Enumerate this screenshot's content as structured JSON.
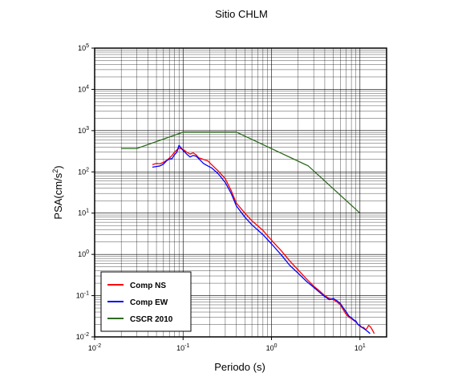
{
  "chart_data": {
    "type": "line",
    "title": "Sitio CHLM",
    "xlabel": "Periodo (s)",
    "ylabel_main": "PSA(cm/s",
    "ylabel_sup": "2",
    "ylabel_close": ")",
    "x_scale": "log",
    "y_scale": "log",
    "xlim": [
      0.01,
      20
    ],
    "ylim": [
      0.01,
      100000
    ],
    "grid": true,
    "legend_position": "bottom-left",
    "x_tick_labels": [
      {
        "base": "10",
        "exp": "-2"
      },
      {
        "base": "10",
        "exp": "-1"
      },
      {
        "base": "10",
        "exp": "0"
      },
      {
        "base": "10",
        "exp": "1"
      }
    ],
    "y_tick_labels": [
      {
        "base": "10",
        "exp": "-2"
      },
      {
        "base": "10",
        "exp": "-1"
      },
      {
        "base": "10",
        "exp": "0"
      },
      {
        "base": "10",
        "exp": "1"
      },
      {
        "base": "10",
        "exp": "2"
      },
      {
        "base": "10",
        "exp": "3"
      },
      {
        "base": "10",
        "exp": "4"
      },
      {
        "base": "10",
        "exp": "5"
      }
    ],
    "series": [
      {
        "name": "Comp NS",
        "color": "#ff0000",
        "points": [
          [
            0.045,
            150
          ],
          [
            0.05,
            160
          ],
          [
            0.055,
            158
          ],
          [
            0.06,
            170
          ],
          [
            0.065,
            190
          ],
          [
            0.07,
            215
          ],
          [
            0.075,
            250
          ],
          [
            0.08,
            300
          ],
          [
            0.085,
            340
          ],
          [
            0.09,
            380
          ],
          [
            0.1,
            350
          ],
          [
            0.11,
            300
          ],
          [
            0.12,
            270
          ],
          [
            0.13,
            290
          ],
          [
            0.14,
            260
          ],
          [
            0.15,
            220
          ],
          [
            0.17,
            200
          ],
          [
            0.19,
            185
          ],
          [
            0.21,
            150
          ],
          [
            0.25,
            105
          ],
          [
            0.3,
            68
          ],
          [
            0.35,
            35
          ],
          [
            0.4,
            17.5
          ],
          [
            0.5,
            10
          ],
          [
            0.6,
            6.5
          ],
          [
            0.8,
            3.8
          ],
          [
            1.0,
            2.2
          ],
          [
            1.3,
            1.2
          ],
          [
            1.6,
            0.7
          ],
          [
            2.0,
            0.42
          ],
          [
            2.5,
            0.25
          ],
          [
            3.0,
            0.17
          ],
          [
            3.5,
            0.13
          ],
          [
            4.0,
            0.1
          ],
          [
            4.5,
            0.085
          ],
          [
            5.0,
            0.08
          ],
          [
            5.5,
            0.07
          ],
          [
            6.0,
            0.06
          ],
          [
            6.5,
            0.045
          ],
          [
            7.0,
            0.035
          ],
          [
            7.5,
            0.03
          ],
          [
            8.0,
            0.028
          ],
          [
            8.5,
            0.025
          ],
          [
            9.0,
            0.023
          ],
          [
            9.5,
            0.02
          ],
          [
            10.0,
            0.018
          ],
          [
            10.5,
            0.017
          ],
          [
            11.0,
            0.017
          ],
          [
            11.5,
            0.015
          ],
          [
            12.0,
            0.016
          ],
          [
            12.5,
            0.019
          ],
          [
            13.0,
            0.018
          ],
          [
            13.5,
            0.016
          ],
          [
            14.0,
            0.014
          ],
          [
            14.5,
            0.012
          ]
        ]
      },
      {
        "name": "Comp EW",
        "color": "#0000ff",
        "points": [
          [
            0.045,
            130
          ],
          [
            0.05,
            135
          ],
          [
            0.055,
            140
          ],
          [
            0.06,
            155
          ],
          [
            0.065,
            185
          ],
          [
            0.07,
            205
          ],
          [
            0.075,
            210
          ],
          [
            0.08,
            260
          ],
          [
            0.085,
            300
          ],
          [
            0.09,
            440
          ],
          [
            0.095,
            380
          ],
          [
            0.1,
            330
          ],
          [
            0.11,
            270
          ],
          [
            0.12,
            230
          ],
          [
            0.13,
            250
          ],
          [
            0.14,
            240
          ],
          [
            0.15,
            210
          ],
          [
            0.17,
            160
          ],
          [
            0.19,
            140
          ],
          [
            0.21,
            125
          ],
          [
            0.25,
            90
          ],
          [
            0.3,
            55
          ],
          [
            0.35,
            30
          ],
          [
            0.4,
            15
          ],
          [
            0.5,
            8
          ],
          [
            0.6,
            5.2
          ],
          [
            0.8,
            3.0
          ],
          [
            1.0,
            1.8
          ],
          [
            1.3,
            0.95
          ],
          [
            1.6,
            0.55
          ],
          [
            2.0,
            0.35
          ],
          [
            2.5,
            0.22
          ],
          [
            3.0,
            0.16
          ],
          [
            3.5,
            0.12
          ],
          [
            4.0,
            0.095
          ],
          [
            4.5,
            0.08
          ],
          [
            5.0,
            0.085
          ],
          [
            5.5,
            0.075
          ],
          [
            6.0,
            0.065
          ],
          [
            6.5,
            0.05
          ],
          [
            7.0,
            0.04
          ],
          [
            7.5,
            0.032
          ],
          [
            8.0,
            0.029
          ],
          [
            8.5,
            0.026
          ],
          [
            9.0,
            0.024
          ],
          [
            9.5,
            0.02
          ],
          [
            10.0,
            0.019
          ],
          [
            10.5,
            0.017
          ],
          [
            11.0,
            0.016
          ],
          [
            11.5,
            0.015
          ],
          [
            12.0,
            0.014
          ],
          [
            12.5,
            0.013
          ],
          [
            13.0,
            0.012
          ]
        ]
      },
      {
        "name": "CSCR 2010",
        "color": "#2e6b1f",
        "points": [
          [
            0.02,
            370
          ],
          [
            0.03,
            370
          ],
          [
            0.1,
            920
          ],
          [
            0.4,
            920
          ],
          [
            2.6,
            140
          ],
          [
            10.0,
            10.0
          ]
        ]
      }
    ]
  }
}
